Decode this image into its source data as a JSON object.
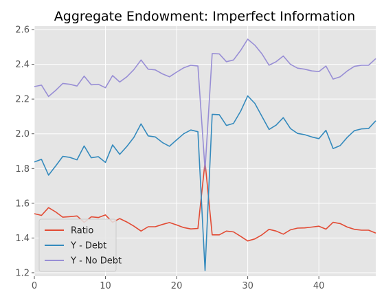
{
  "chart_data": {
    "type": "line",
    "title": "Aggregate Endowment: Imperfect Information",
    "xlabel": "",
    "ylabel": "",
    "xlim": [
      0,
      48
    ],
    "ylim": [
      1.18,
      2.62
    ],
    "xticks": [
      "0",
      "10",
      "20",
      "30",
      "40"
    ],
    "yticks": [
      "1.2",
      "1.4",
      "1.6",
      "1.8",
      "2.0",
      "2.2",
      "2.4",
      "2.6"
    ],
    "grid": true,
    "legend_position": "lower-left",
    "series": [
      {
        "name": "Ratio",
        "color": "#E24A33",
        "x": [
          0,
          1,
          2,
          3,
          4,
          5,
          6,
          7,
          8,
          9,
          10,
          11,
          12,
          13,
          14,
          15,
          16,
          17,
          18,
          19,
          20,
          21,
          22,
          23,
          24,
          25,
          26,
          27,
          28,
          29,
          30,
          31,
          32,
          33,
          34,
          35,
          36,
          37,
          38,
          39,
          40,
          41,
          42,
          43,
          44,
          45,
          46,
          47,
          48
        ],
        "values": [
          1.54,
          1.53,
          1.575,
          1.55,
          1.52,
          1.523,
          1.527,
          1.49,
          1.522,
          1.518,
          1.533,
          1.49,
          1.512,
          1.492,
          1.468,
          1.44,
          1.465,
          1.465,
          1.478,
          1.489,
          1.475,
          1.46,
          1.452,
          1.455,
          1.838,
          1.418,
          1.418,
          1.44,
          1.435,
          1.41,
          1.383,
          1.395,
          1.418,
          1.45,
          1.44,
          1.422,
          1.447,
          1.457,
          1.458,
          1.463,
          1.468,
          1.451,
          1.49,
          1.483,
          1.463,
          1.45,
          1.445,
          1.445,
          1.428
        ]
      },
      {
        "name": "Y - Debt",
        "color": "#348ABD",
        "x": [
          0,
          1,
          2,
          3,
          4,
          5,
          6,
          7,
          8,
          9,
          10,
          11,
          12,
          13,
          14,
          15,
          16,
          17,
          18,
          19,
          20,
          21,
          22,
          23,
          24,
          25,
          26,
          27,
          28,
          29,
          30,
          31,
          32,
          33,
          34,
          35,
          36,
          37,
          38,
          39,
          40,
          41,
          42,
          43,
          44,
          45,
          46,
          47,
          48
        ],
        "values": [
          1.838,
          1.853,
          1.762,
          1.815,
          1.87,
          1.864,
          1.85,
          1.93,
          1.862,
          1.868,
          1.835,
          1.936,
          1.882,
          1.927,
          1.98,
          2.057,
          1.988,
          1.982,
          1.95,
          1.928,
          1.965,
          2.0,
          2.022,
          2.012,
          1.213,
          2.112,
          2.11,
          2.048,
          2.06,
          2.13,
          2.218,
          2.175,
          2.1,
          2.025,
          2.05,
          2.093,
          2.03,
          2.002,
          1.995,
          1.982,
          1.972,
          2.02,
          1.915,
          1.932,
          1.98,
          2.018,
          2.028,
          2.03,
          2.075
        ]
      },
      {
        "name": "Y - No Debt",
        "color": "#988ED5",
        "x": [
          0,
          1,
          2,
          3,
          4,
          5,
          6,
          7,
          8,
          9,
          10,
          11,
          12,
          13,
          14,
          15,
          16,
          17,
          18,
          19,
          20,
          21,
          22,
          23,
          24,
          25,
          26,
          27,
          28,
          29,
          30,
          31,
          32,
          33,
          34,
          35,
          36,
          37,
          38,
          39,
          40,
          41,
          42,
          43,
          44,
          45,
          46,
          47,
          48
        ],
        "values": [
          2.272,
          2.28,
          2.215,
          2.25,
          2.29,
          2.285,
          2.275,
          2.332,
          2.282,
          2.285,
          2.265,
          2.335,
          2.298,
          2.328,
          2.37,
          2.425,
          2.372,
          2.368,
          2.345,
          2.328,
          2.355,
          2.38,
          2.395,
          2.39,
          1.792,
          2.462,
          2.46,
          2.415,
          2.425,
          2.48,
          2.545,
          2.51,
          2.46,
          2.395,
          2.415,
          2.448,
          2.4,
          2.378,
          2.372,
          2.362,
          2.358,
          2.39,
          2.315,
          2.328,
          2.362,
          2.388,
          2.395,
          2.395,
          2.433
        ]
      }
    ]
  }
}
